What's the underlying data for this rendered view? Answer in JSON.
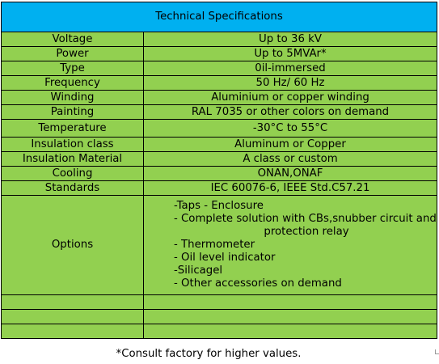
{
  "title": "Technical Specifications",
  "rows": [
    {
      "label": "Voltage",
      "value": "Up to 36 kV"
    },
    {
      "label": "Power",
      "value": "Up to 5MVAr*"
    },
    {
      "label": "Type",
      "value": "0il-immersed"
    },
    {
      "label": "Frequency",
      "value": "50 Hz/ 60 Hz"
    },
    {
      "label": "Winding",
      "value": "Aluminium or copper winding"
    },
    {
      "label": "Painting",
      "value": "RAL 7035 or other colors on demand"
    },
    {
      "label": "Temperature",
      "value": "-30°C to 55°C"
    },
    {
      "label": "Insulation class",
      "value": "Aluminum or Copper"
    },
    {
      "label": "Insulation Material",
      "value": "A class or custom"
    },
    {
      "label": "Cooling",
      "value": "ONAN,ONAF"
    },
    {
      "label": "Standards",
      "value": "IEC 60076-6, IEEE Std.C57.21"
    }
  ],
  "options": {
    "label": "Options",
    "lines": [
      "-Taps - Enclosure",
      "- Complete solution with CBs,snubber circuit and",
      "protection relay",
      "- Thermometer",
      "- Oil level indicator",
      "-Silicagel",
      "- Other accessories on demand"
    ]
  },
  "footnote": "*Consult factory for higher values.",
  "colors": {
    "header_bg": "#00b0f0",
    "row_bg": "#92d050",
    "border": "#000000"
  }
}
